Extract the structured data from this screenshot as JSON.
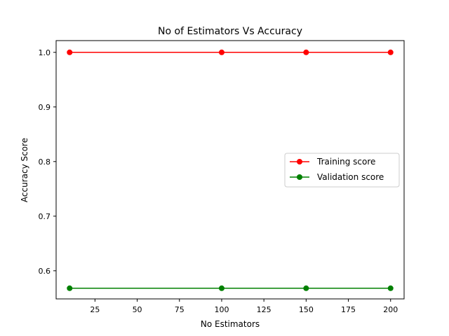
{
  "chart_data": {
    "type": "line",
    "title": "No of Estimators Vs Accuracy",
    "xlabel": "No Estimators",
    "ylabel": "Accuracy Score",
    "x": [
      10,
      100,
      150,
      200
    ],
    "xlim": [
      2,
      208
    ],
    "ylim": [
      0.5485,
      1.0215
    ],
    "xticks": [
      25,
      50,
      75,
      100,
      125,
      150,
      175,
      200
    ],
    "xtick_labels": [
      "25",
      "50",
      "75",
      "100",
      "125",
      "150",
      "175",
      "200"
    ],
    "yticks": [
      0.6,
      0.7,
      0.8,
      0.9,
      1.0
    ],
    "ytick_labels": [
      "0.6",
      "0.7",
      "0.8",
      "0.9",
      "1.0"
    ],
    "grid": false,
    "legend_position": "center-right",
    "series": [
      {
        "name": "Training score",
        "color": "#ff0000",
        "values": [
          1.0,
          1.0,
          1.0,
          1.0
        ]
      },
      {
        "name": "Validation score",
        "color": "#008000",
        "values": [
          0.568,
          0.568,
          0.568,
          0.568
        ]
      }
    ]
  }
}
